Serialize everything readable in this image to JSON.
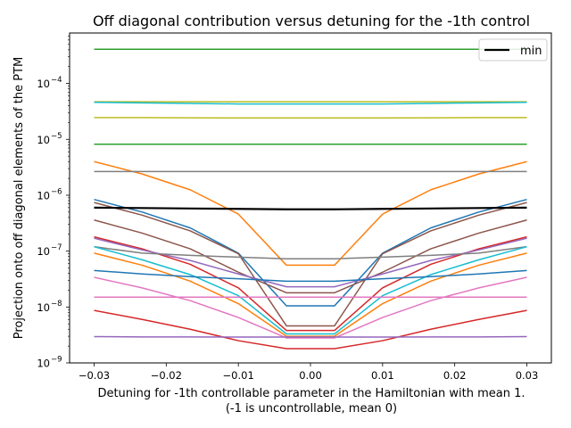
{
  "chart_data": {
    "type": "line",
    "title": "Off diagonal contribution versus detuning for the -1th control",
    "xlabel_line1": "Detuning for -1th controllable parameter in the Hamiltonian with mean 1.",
    "xlabel_line2": "(-1 is uncontrollable, mean 0)",
    "ylabel": "Projection onto off diagonal elements of the PTM",
    "yscale": "log",
    "xlim": [
      -0.0334,
      0.0334
    ],
    "ylim": [
      1e-09,
      0.0008
    ],
    "x": [
      -0.03,
      -0.02333,
      -0.01667,
      -0.01,
      -0.00333,
      0.00333,
      0.01,
      0.01667,
      0.02333,
      0.03
    ],
    "xticks": [
      {
        "v": -0.03,
        "label": "−0.03"
      },
      {
        "v": -0.02,
        "label": "−0.02"
      },
      {
        "v": -0.01,
        "label": "−0.01"
      },
      {
        "v": 0.0,
        "label": "0.00"
      },
      {
        "v": 0.01,
        "label": "0.01"
      },
      {
        "v": 0.02,
        "label": "0.02"
      },
      {
        "v": 0.03,
        "label": "0.03"
      }
    ],
    "yticks": [
      {
        "v": 1e-09,
        "base": "10",
        "exp": "−9"
      },
      {
        "v": 1e-08,
        "base": "10",
        "exp": "−8"
      },
      {
        "v": 1e-07,
        "base": "10",
        "exp": "−7"
      },
      {
        "v": 1e-06,
        "base": "10",
        "exp": "−6"
      },
      {
        "v": 1e-05,
        "base": "10",
        "exp": "−5"
      },
      {
        "v": 0.0001,
        "base": "10",
        "exp": "−4"
      }
    ],
    "legend": {
      "position": "upper right",
      "entries": [
        {
          "label": "min",
          "color": "#000000"
        }
      ]
    },
    "series": [
      {
        "color": "#2ca02c",
        "values": [
          0.00041,
          0.00041,
          0.00041,
          0.00041,
          0.00041,
          0.00041,
          0.00041,
          0.00041,
          0.00041,
          0.00041
        ]
      },
      {
        "color": "#bcbd22",
        "values": [
          4.7e-05,
          4.7e-05,
          4.7e-05,
          4.7e-05,
          4.7e-05,
          4.7e-05,
          4.7e-05,
          4.7e-05,
          4.7e-05,
          4.7e-05
        ]
      },
      {
        "color": "#17becf",
        "values": [
          4.6e-05,
          4.5e-05,
          4.4e-05,
          4.3e-05,
          4.3e-05,
          4.3e-05,
          4.3e-05,
          4.4e-05,
          4.5e-05,
          4.6e-05
        ]
      },
      {
        "color": "#bcbd22",
        "values": [
          2.45e-05,
          2.45e-05,
          2.43e-05,
          2.42e-05,
          2.42e-05,
          2.42e-05,
          2.42e-05,
          2.43e-05,
          2.45e-05,
          2.45e-05
        ]
      },
      {
        "color": "#2ca02c",
        "values": [
          8.2e-06,
          8.2e-06,
          8.2e-06,
          8.2e-06,
          8.2e-06,
          8.2e-06,
          8.2e-06,
          8.2e-06,
          8.2e-06,
          8.2e-06
        ]
      },
      {
        "color": "#ff7f0e",
        "values": [
          4e-06,
          2.4e-06,
          1.25e-06,
          4.6e-07,
          5.6e-08,
          5.6e-08,
          4.6e-07,
          1.25e-06,
          2.4e-06,
          4e-06
        ]
      },
      {
        "color": "#7f7f7f",
        "values": [
          2.65e-06,
          2.65e-06,
          2.65e-06,
          2.65e-06,
          2.65e-06,
          2.65e-06,
          2.65e-06,
          2.65e-06,
          2.65e-06,
          2.65e-06
        ]
      },
      {
        "color": "#1f77b4",
        "values": [
          8.4e-07,
          5e-07,
          2.6e-07,
          9.2e-08,
          1.05e-08,
          1.05e-08,
          9.2e-08,
          2.6e-07,
          5e-07,
          8.4e-07
        ]
      },
      {
        "color": "#8c564b",
        "values": [
          7.4e-07,
          4.4e-07,
          2.3e-07,
          9e-08,
          4.6e-09,
          4.6e-09,
          9e-08,
          2.3e-07,
          4.4e-07,
          7.4e-07
        ]
      },
      {
        "color": "#8c564b",
        "values": [
          3.6e-07,
          2.1e-07,
          1.1e-07,
          4.2e-08,
          1.8e-08,
          1.8e-08,
          4.2e-08,
          1.1e-07,
          2.1e-07,
          3.6e-07
        ]
      },
      {
        "color": "#d62728",
        "values": [
          1.8e-07,
          1.1e-07,
          5.8e-08,
          2.2e-08,
          3.8e-09,
          3.8e-09,
          2.2e-08,
          5.8e-08,
          1.1e-07,
          1.8e-07
        ]
      },
      {
        "color": "#9467bd",
        "values": [
          1.7e-07,
          1.05e-07,
          6.8e-08,
          3.9e-08,
          2.3e-08,
          2.3e-08,
          3.9e-08,
          6.8e-08,
          1.05e-07,
          1.7e-07
        ]
      },
      {
        "color": "#7f7f7f",
        "values": [
          1.2e-07,
          9.2e-08,
          8.4e-08,
          7.8e-08,
          7.3e-08,
          7.3e-08,
          7.8e-08,
          8.4e-08,
          9.2e-08,
          1.2e-07
        ]
      },
      {
        "color": "#17becf",
        "values": [
          1.2e-07,
          7e-08,
          3.8e-08,
          1.6e-08,
          3.3e-09,
          3.3e-09,
          1.6e-08,
          3.8e-08,
          7e-08,
          1.2e-07
        ]
      },
      {
        "color": "#ff7f0e",
        "values": [
          9.2e-08,
          5.6e-08,
          2.9e-08,
          1.15e-08,
          3e-09,
          3e-09,
          1.15e-08,
          2.9e-08,
          5.6e-08,
          9.2e-08
        ]
      },
      {
        "color": "#1f77b4",
        "values": [
          4.5e-08,
          3.9e-08,
          3.5e-08,
          3.2e-08,
          2.9e-08,
          2.9e-08,
          3.2e-08,
          3.5e-08,
          3.9e-08,
          4.5e-08
        ]
      },
      {
        "color": "#e377c2",
        "values": [
          3.4e-08,
          2.2e-08,
          1.3e-08,
          6.5e-09,
          2.8e-09,
          2.8e-09,
          6.5e-09,
          1.3e-08,
          2.2e-08,
          3.4e-08
        ]
      },
      {
        "color": "#e377c2",
        "values": [
          1.5e-08,
          1.5e-08,
          1.5e-08,
          1.5e-08,
          1.5e-08,
          1.5e-08,
          1.5e-08,
          1.5e-08,
          1.5e-08,
          1.5e-08
        ]
      },
      {
        "color": "#d62728",
        "values": [
          8.7e-09,
          6e-09,
          4e-09,
          2.5e-09,
          1.8e-09,
          1.8e-09,
          2.5e-09,
          4e-09,
          6e-09,
          8.7e-09
        ]
      },
      {
        "color": "#9467bd",
        "values": [
          2.95e-09,
          2.92e-09,
          2.92e-09,
          2.9e-09,
          2.9e-09,
          2.9e-09,
          2.9e-09,
          2.92e-09,
          2.92e-09,
          2.95e-09
        ]
      },
      {
        "name": "min",
        "color": "#000000",
        "width": 2.2,
        "values": [
          6e-07,
          5.9e-07,
          5.8e-07,
          5.7e-07,
          5.6e-07,
          5.6e-07,
          5.7e-07,
          5.8e-07,
          5.9e-07,
          6e-07
        ]
      }
    ]
  }
}
